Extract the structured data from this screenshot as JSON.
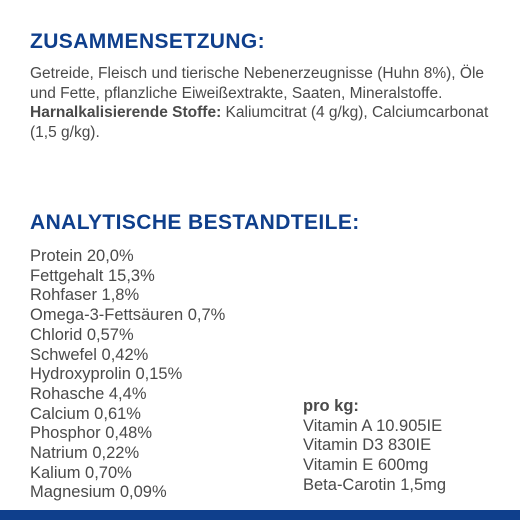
{
  "composition": {
    "heading": "ZUSAMMENSETZUNG:",
    "text": "Getreide, Fleisch und tierische Nebenerzeugnisse (Huhn 8%), Öle und Fette, pflanzliche Eiweißextrakte, Saaten, Mineralstoffe.",
    "urinary_label": "Harnalkalisierende Stoffe:",
    "urinary_text": "Kaliumcitrat (4 g/kg), Calciumcarbonat (1,5 g/kg)."
  },
  "analytics": {
    "heading": "ANALYTISCHE BESTANDTEILE:",
    "items": [
      "Protein 20,0%",
      "Fettgehalt 15,3%",
      "Rohfaser 1,8%",
      "Omega-3-Fettsäuren 0,7%",
      "Chlorid 0,57%",
      "Schwefel 0,42%",
      "Hydroxyprolin 0,15%",
      "Rohasche 4,4%",
      "Calcium 0,61%",
      "Phosphor 0,48%",
      "Natrium 0,22%",
      "Kalium 0,70%",
      "Magnesium 0,09%"
    ]
  },
  "vitamins": {
    "heading": "pro kg:",
    "items": [
      "Vitamin A 10.905IE",
      "Vitamin D3 830IE",
      "Vitamin E 600mg",
      "Beta-Carotin 1,5mg"
    ]
  },
  "colors": {
    "heading": "#0f3f8c",
    "text": "#4a4a4a",
    "bar": "#0f3f8c"
  }
}
